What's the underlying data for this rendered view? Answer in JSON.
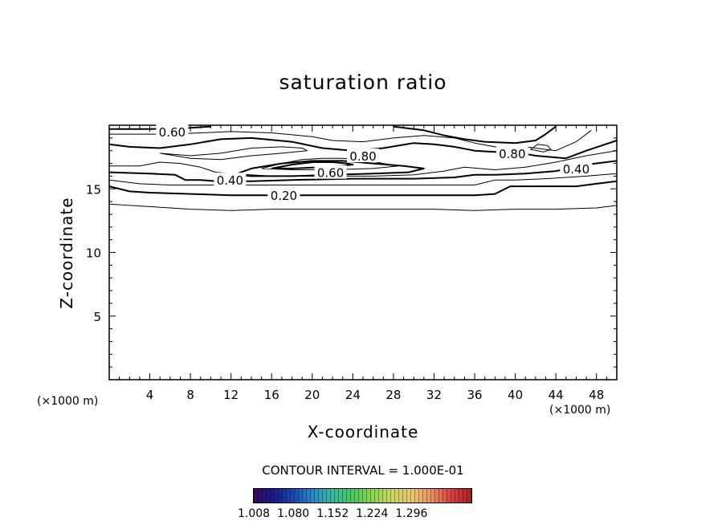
{
  "chart_data": {
    "type": "contour",
    "title": "saturation ratio",
    "xlabel": "X-coordinate",
    "ylabel": "Z-coordinate",
    "x_unit_label": "(×1000 m)",
    "xlim": [
      0,
      50
    ],
    "ylim": [
      0,
      20
    ],
    "x_ticks": [
      4,
      8,
      12,
      16,
      20,
      24,
      28,
      32,
      36,
      40,
      44,
      48
    ],
    "y_ticks": [
      5,
      10,
      15
    ],
    "contour_interval_label": "CONTOUR INTERVAL = 1.000E-01",
    "contour_labels": [
      {
        "text": "0.60",
        "x": 6.2,
        "z": 19.5
      },
      {
        "text": "0.80",
        "x": 25.0,
        "z": 17.6
      },
      {
        "text": "0.60",
        "x": 21.8,
        "z": 16.3
      },
      {
        "text": "0.40",
        "x": 11.9,
        "z": 15.7
      },
      {
        "text": "0.20",
        "x": 17.2,
        "z": 14.5
      },
      {
        "text": "0.80",
        "x": 39.7,
        "z": 17.8
      },
      {
        "text": "0.40",
        "x": 46.0,
        "z": 16.6
      }
    ],
    "contours": [
      {
        "level": 0.1,
        "heavy": false,
        "points": [
          [
            0,
            13.8
          ],
          [
            4,
            13.6
          ],
          [
            8,
            13.4
          ],
          [
            12,
            13.3
          ],
          [
            16,
            13.4
          ],
          [
            20,
            13.4
          ],
          [
            24,
            13.4
          ],
          [
            28,
            13.4
          ],
          [
            32,
            13.4
          ],
          [
            36,
            13.3
          ],
          [
            40,
            13.4
          ],
          [
            44,
            13.4
          ],
          [
            48,
            13.5
          ],
          [
            50,
            13.7
          ]
        ]
      },
      {
        "level": 0.2,
        "heavy": true,
        "points": [
          [
            0,
            15.2
          ],
          [
            2,
            14.8
          ],
          [
            4,
            14.7
          ],
          [
            8,
            14.6
          ],
          [
            12,
            14.5
          ],
          [
            16,
            14.5
          ],
          [
            20,
            14.5
          ],
          [
            24,
            14.5
          ],
          [
            28,
            14.5
          ],
          [
            32,
            14.5
          ],
          [
            36,
            14.5
          ],
          [
            38,
            14.6
          ],
          [
            39.5,
            15.2
          ],
          [
            42,
            15.2
          ],
          [
            46,
            15.2
          ],
          [
            48,
            15.4
          ],
          [
            50,
            15.6
          ]
        ]
      },
      {
        "level": 0.3,
        "heavy": false,
        "points": [
          [
            0,
            15.7
          ],
          [
            3,
            15.4
          ],
          [
            6,
            15.3
          ],
          [
            10,
            15.3
          ],
          [
            14,
            15.3
          ],
          [
            20,
            15.3
          ],
          [
            26,
            15.3
          ],
          [
            32,
            15.3
          ],
          [
            36,
            15.3
          ],
          [
            38,
            15.7
          ],
          [
            40,
            15.7
          ],
          [
            43,
            15.8
          ],
          [
            47,
            16.0
          ],
          [
            50,
            16.2
          ]
        ]
      },
      {
        "level": 0.4,
        "heavy": true,
        "points": [
          [
            0,
            16.3
          ],
          [
            4,
            16.2
          ],
          [
            6.5,
            16.1
          ],
          [
            7.5,
            15.7
          ],
          [
            9,
            15.7
          ],
          [
            10.5,
            15.6
          ],
          [
            12,
            15.6
          ],
          [
            14,
            15.6
          ],
          [
            18,
            15.7
          ],
          [
            24,
            15.8
          ],
          [
            30,
            15.8
          ],
          [
            34,
            15.9
          ],
          [
            36,
            16.1
          ],
          [
            38,
            16.1
          ],
          [
            41,
            16.2
          ],
          [
            44,
            16.4
          ],
          [
            47,
            16.9
          ],
          [
            50,
            17.2
          ]
        ]
      },
      {
        "level": 0.5,
        "heavy": false,
        "points": [
          [
            0,
            16.8
          ],
          [
            3,
            16.8
          ],
          [
            5,
            17.1
          ],
          [
            7,
            17.0
          ],
          [
            9,
            16.7
          ],
          [
            10.5,
            16.3
          ],
          [
            12,
            16.2
          ],
          [
            16,
            16.0
          ],
          [
            20,
            16.0
          ],
          [
            26,
            16.0
          ],
          [
            30,
            16.1
          ],
          [
            33,
            16.4
          ],
          [
            35,
            16.7
          ],
          [
            38,
            16.5
          ],
          [
            41,
            16.7
          ],
          [
            44,
            17.1
          ],
          [
            47,
            17.6
          ],
          [
            50,
            18.0
          ]
        ]
      },
      {
        "level": 0.6,
        "heavy": true,
        "points": [
          [
            12.3,
            16.1
          ],
          [
            14,
            16.6
          ],
          [
            17,
            17.0
          ],
          [
            20,
            17.2
          ],
          [
            23,
            17.2
          ],
          [
            26,
            17.0
          ],
          [
            29,
            16.8
          ],
          [
            31,
            16.6
          ],
          [
            29.5,
            16.3
          ],
          [
            26,
            16.2
          ],
          [
            22,
            16.1
          ],
          [
            18,
            16.0
          ],
          [
            14,
            16.0
          ],
          [
            12.3,
            16.1
          ]
        ]
      },
      {
        "level": 0.7,
        "heavy": false,
        "points": [
          [
            15,
            16.6
          ],
          [
            17,
            17.0
          ],
          [
            19,
            17.3
          ],
          [
            21,
            17.4
          ],
          [
            23,
            17.4
          ],
          [
            25,
            17.3
          ],
          [
            27,
            17.0
          ],
          [
            28.5,
            16.8
          ],
          [
            26,
            16.6
          ],
          [
            22,
            16.5
          ],
          [
            18,
            16.5
          ],
          [
            15,
            16.6
          ]
        ]
      },
      {
        "level": 0.8,
        "heavy": true,
        "points": [
          [
            16,
            16.6
          ],
          [
            18,
            16.9
          ],
          [
            20,
            17.1
          ],
          [
            22,
            17.1
          ],
          [
            23.5,
            17.0
          ],
          [
            24,
            16.9
          ],
          [
            21,
            16.7
          ],
          [
            18,
            16.6
          ],
          [
            16,
            16.6
          ]
        ]
      },
      {
        "level": 0.6,
        "heavy": true,
        "points": [
          [
            0,
            18.5
          ],
          [
            2,
            18.3
          ],
          [
            5,
            18.2
          ],
          [
            8,
            18.5
          ],
          [
            11,
            18.9
          ],
          [
            14,
            19.0
          ],
          [
            18,
            18.7
          ],
          [
            21,
            18.2
          ],
          [
            24,
            18.0
          ],
          [
            27,
            18.2
          ],
          [
            30,
            18.6
          ],
          [
            32,
            18.5
          ],
          [
            34,
            18.3
          ],
          [
            36,
            18.0
          ],
          [
            38,
            17.9
          ],
          [
            40,
            17.9
          ],
          [
            42,
            17.6
          ],
          [
            45,
            17.4
          ],
          [
            47,
            18.0
          ],
          [
            50,
            18.8
          ]
        ]
      },
      {
        "level": 0.7,
        "heavy": false,
        "points": [
          [
            0,
            19.3
          ],
          [
            3,
            19.3
          ],
          [
            6,
            19.3
          ],
          [
            9,
            19.4
          ],
          [
            12,
            19.5
          ],
          [
            16,
            19.4
          ],
          [
            20,
            19.1
          ],
          [
            22,
            18.8
          ],
          [
            25,
            18.7
          ],
          [
            28,
            19.0
          ],
          [
            31,
            19.2
          ],
          [
            34,
            19.0
          ],
          [
            36,
            18.6
          ],
          [
            38,
            18.3
          ],
          [
            41,
            18.3
          ],
          [
            44,
            18.0
          ],
          [
            46,
            18.7
          ],
          [
            47.5,
            19.6
          ]
        ]
      },
      {
        "level": 0.8,
        "heavy": true,
        "points": [
          [
            0,
            19.7
          ],
          [
            4,
            19.7
          ],
          [
            8,
            19.8
          ],
          [
            10,
            19.9
          ]
        ]
      },
      {
        "level": 0.8,
        "heavy": true,
        "points": [
          [
            28,
            19.9
          ],
          [
            31,
            19.6
          ],
          [
            33,
            19.2
          ],
          [
            35,
            18.9
          ],
          [
            37,
            18.7
          ],
          [
            40,
            18.6
          ],
          [
            42,
            18.8
          ],
          [
            43,
            19.3
          ],
          [
            44,
            19.9
          ]
        ]
      },
      {
        "level": 0.5,
        "heavy": false,
        "points": [
          [
            5,
            17.8
          ],
          [
            8,
            17.6
          ],
          [
            11,
            17.8
          ],
          [
            14,
            18.2
          ],
          [
            17,
            18.3
          ],
          [
            19,
            18.2
          ],
          [
            19.5,
            18.0
          ],
          [
            17,
            17.8
          ],
          [
            14,
            17.6
          ],
          [
            11,
            17.3
          ],
          [
            8,
            17.4
          ],
          [
            5,
            17.8
          ]
        ]
      },
      {
        "level": 0.9,
        "heavy": false,
        "points": [
          [
            41.5,
            18.1
          ],
          [
            42.2,
            18.5
          ],
          [
            43.2,
            18.4
          ],
          [
            43.5,
            18.1
          ],
          [
            42.8,
            17.9
          ],
          [
            41.5,
            18.1
          ]
        ]
      }
    ],
    "colorbar": {
      "tick_labels": [
        "1.008",
        "1.080",
        "1.152",
        "1.224",
        "1.296"
      ],
      "range": [
        1.008,
        1.32
      ],
      "colors": [
        "#3a0a5a",
        "#1a1a8a",
        "#1a4ab0",
        "#2a8ac8",
        "#3ab8a0",
        "#4ac860",
        "#8ad850",
        "#c8d860",
        "#e8c870",
        "#e89060",
        "#d84040",
        "#b02020"
      ]
    }
  }
}
